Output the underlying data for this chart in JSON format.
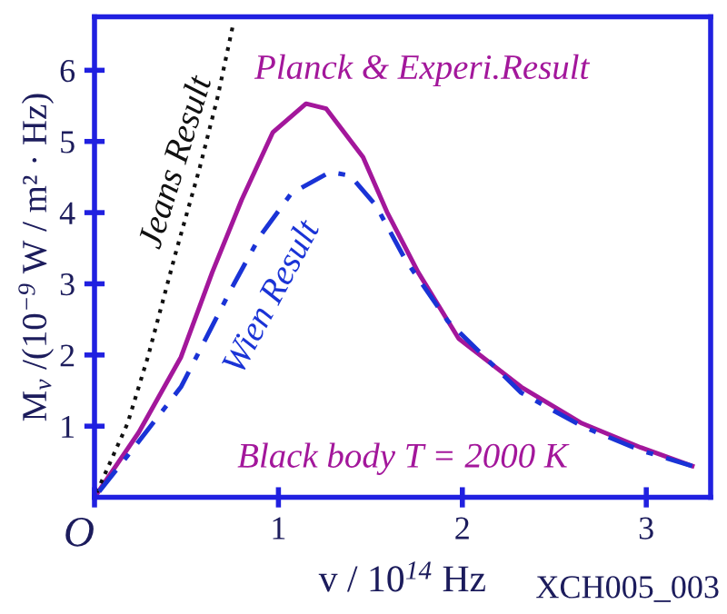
{
  "chart_data": {
    "type": "line",
    "xlabel": "v / 10$^{14}$ Hz",
    "ylabel": "M$_{v}$ /(10$^{−9}$ W / m² · Hz)",
    "xlim": [
      0,
      3.35
    ],
    "ylim": [
      0,
      6.75
    ],
    "xticks": [
      {
        "value": 0,
        "label": "O"
      },
      1,
      2,
      3
    ],
    "yticks": [
      1,
      2,
      3,
      4,
      5,
      6
    ],
    "series": [
      {
        "name": "Planck & Experi.Result",
        "color": "#a3179b",
        "line_style": "solid",
        "x": [
          0,
          0.24,
          0.47,
          0.64,
          0.8,
          0.97,
          1.15,
          1.26,
          1.46,
          1.59,
          1.76,
          1.98,
          2.32,
          2.65,
          2.97,
          3.25
        ],
        "values": [
          0,
          0.91,
          1.97,
          3.16,
          4.18,
          5.13,
          5.53,
          5.46,
          4.78,
          4.01,
          3.16,
          2.23,
          1.55,
          1.04,
          0.7,
          0.44
        ]
      },
      {
        "name": "Jeans Result",
        "color": "#111111",
        "line_style": "dotted",
        "x": [
          0,
          0.18,
          0.29,
          0.44,
          0.57,
          0.67,
          0.75
        ],
        "values": [
          0,
          1.04,
          1.97,
          3.42,
          4.61,
          5.63,
          6.6
        ]
      },
      {
        "name": "Wien Result",
        "color": "#1a33d6",
        "line_style": "dashdot",
        "x": [
          0,
          0.2,
          0.47,
          0.74,
          0.9,
          1.07,
          1.28,
          1.39,
          1.53,
          1.69,
          1.92,
          2.32,
          2.65,
          2.97,
          3.25
        ],
        "values": [
          0,
          0.65,
          1.55,
          2.91,
          3.67,
          4.27,
          4.57,
          4.52,
          4.1,
          3.34,
          2.48,
          1.47,
          1.0,
          0.66,
          0.44
        ]
      }
    ],
    "annotations": [
      "Black body T = 2000 K",
      "XCH005_003"
    ]
  }
}
